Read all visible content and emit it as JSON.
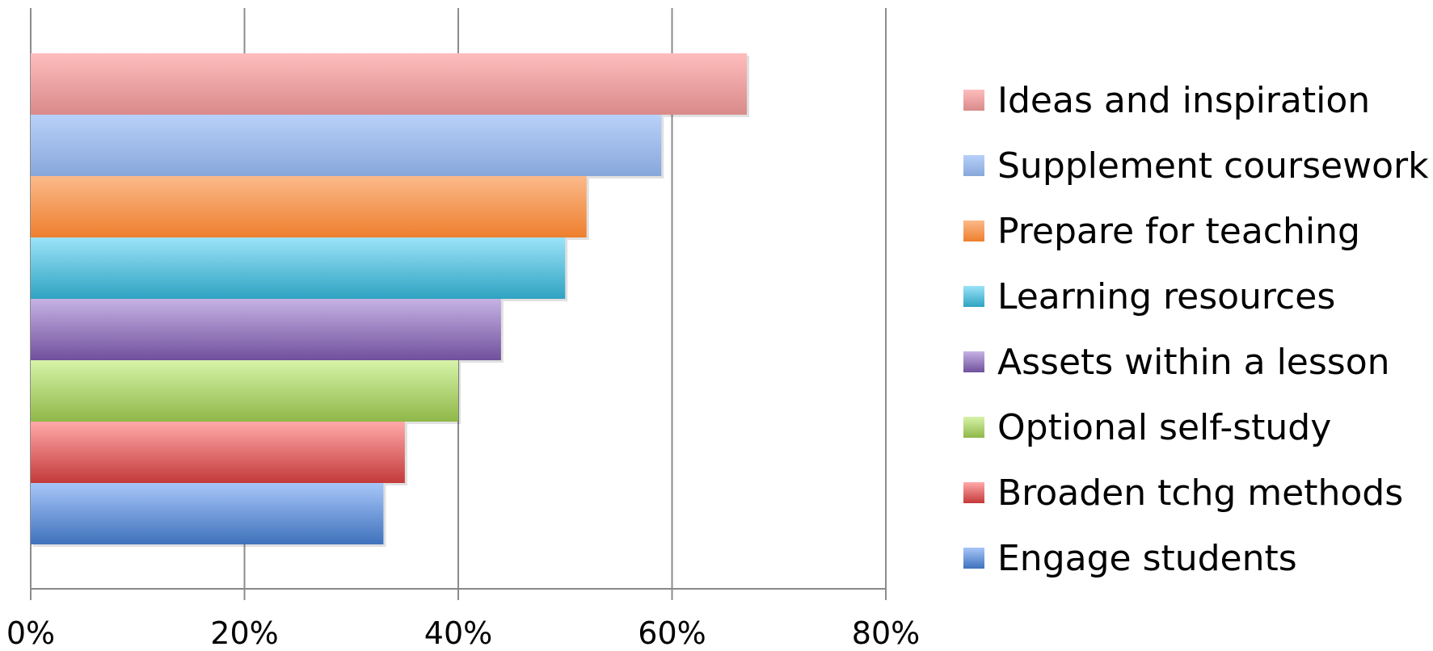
{
  "chart_data": {
    "type": "bar",
    "orientation": "horizontal",
    "title": "",
    "xlabel": "",
    "ylabel": "",
    "xlim": [
      0,
      80
    ],
    "x_ticks": [
      0,
      20,
      40,
      60,
      80
    ],
    "x_tick_labels": [
      "0%",
      "20%",
      "40%",
      "60%",
      "80%"
    ],
    "grid": "vertical",
    "legend_position": "right",
    "series": [
      {
        "name": "Ideas and inspiration",
        "value": 67,
        "color_top": "#FFBDBD",
        "color_bottom": "#D98A8A"
      },
      {
        "name": "Supplement coursework",
        "value": 59,
        "color_top": "#B9D1FA",
        "color_bottom": "#87A7DA"
      },
      {
        "name": "Prepare for teaching",
        "value": 52,
        "color_top": "#FBB98A",
        "color_bottom": "#EE7F2E"
      },
      {
        "name": "Learning resources",
        "value": 50,
        "color_top": "#9BE3F7",
        "color_bottom": "#2FA3C2"
      },
      {
        "name": "Assets within a lesson",
        "value": 44,
        "color_top": "#C6B3E4",
        "color_bottom": "#70509C"
      },
      {
        "name": "Optional self-study",
        "value": 40,
        "color_top": "#D6F3A8",
        "color_bottom": "#8FB748"
      },
      {
        "name": "Broaden tchg methods",
        "value": 35,
        "color_top": "#FFA9A9",
        "color_bottom": "#C43A3A"
      },
      {
        "name": "Engage students",
        "value": 33,
        "color_top": "#A7C6F9",
        "color_bottom": "#3F72BC"
      }
    ]
  }
}
